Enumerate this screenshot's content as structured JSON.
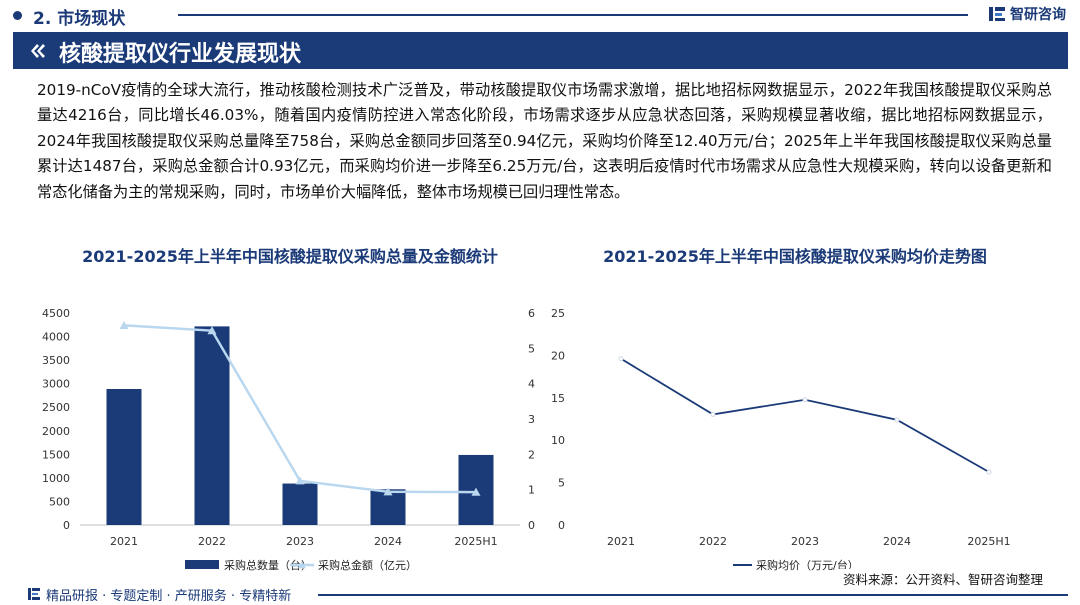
{
  "header": {
    "section_label": "2. 市场现状",
    "brand_name": "智研咨询"
  },
  "title_banner": {
    "title": "核酸提取仪行业发展现状"
  },
  "body_text": "2019-nCoV疫情的全球大流行，推动核酸检测技术广泛普及，带动核酸提取仪市场需求激增，据比地招标网数据显示，2022年我国核酸提取仪采购总量达4216台，同比增长46.03%，随着国内疫情防控进入常态化阶段，市场需求逐步从应急状态回落，采购规模显著收缩，据比地招标网数据显示，2024年我国核酸提取仪采购总量降至758台，采购总金额同步回落至0.94亿元，采购均价降至12.40万元/台；2025年上半年我国核酸提取仪采购总量累计达1487台，采购总金额合计0.93亿元，而采购均价进一步降至6.25万元/台，这表明后疫情时代市场需求从应急性大规模采购，转向以设备更新和常态化储备为主的常规采购，同时，市场单价大幅降低，整体市场规模已回归理性常态。",
  "chart_data": [
    {
      "type": "bar",
      "title": "2021-2025年上半年中国核酸提取仪采购总量及金额统计",
      "categories": [
        "2021",
        "2022",
        "2023",
        "2024",
        "2025H1"
      ],
      "ylim": [
        0,
        4500
      ],
      "y_ticks": [
        "0",
        "500",
        "1000",
        "1500",
        "2000",
        "2500",
        "3000",
        "3500",
        "4000",
        "4500"
      ],
      "y2lim": [
        0,
        6
      ],
      "y2_ticks": [
        "0",
        "1",
        "2",
        "3",
        "4",
        "5",
        "6"
      ],
      "grid": false,
      "legend_position": "bottom",
      "series": [
        {
          "name": "采购总数量（台）",
          "type": "bar",
          "axis": "left",
          "color": "#1b3a78",
          "values": [
            2887,
            4216,
            880,
            758,
            1487
          ]
        },
        {
          "name": "采购总金额（亿元）",
          "type": "line",
          "axis": "right",
          "color": "#b9d7ee",
          "marker": "triangle",
          "values": [
            5.65,
            5.5,
            1.25,
            0.94,
            0.93
          ]
        }
      ]
    },
    {
      "type": "line",
      "title": "2021-2025年上半年中国核酸提取仪采购均价走势图",
      "categories": [
        "2021",
        "2022",
        "2023",
        "2024",
        "2025H1"
      ],
      "ylim": [
        0,
        25
      ],
      "y_ticks": [
        "0",
        "5",
        "10",
        "15",
        "20",
        "25"
      ],
      "grid": false,
      "legend_position": "bottom",
      "series": [
        {
          "name": "采购均价（万元/台）",
          "color": "#1b3a78",
          "values": [
            19.6,
            13.04,
            14.77,
            12.4,
            6.25
          ]
        }
      ]
    }
  ],
  "footer": {
    "tagline": "精品研报 · 专题定制 · 产研服务 · 专精特新",
    "source": "资料来源：公开资料、智研咨询整理"
  }
}
